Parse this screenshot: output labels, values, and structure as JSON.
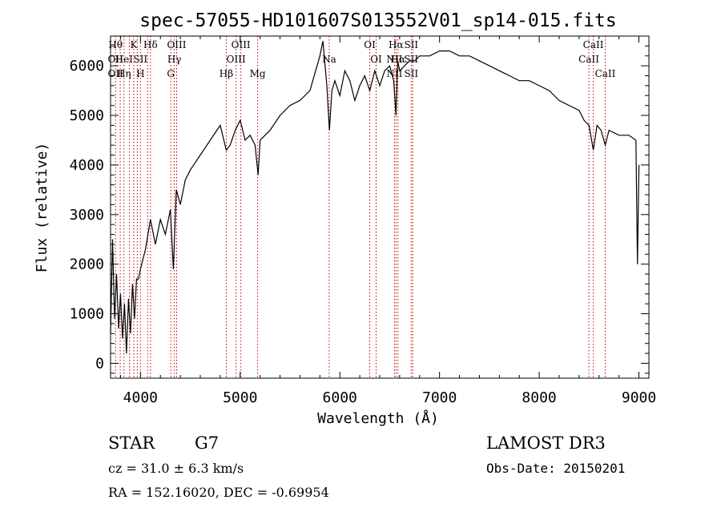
{
  "colors": {
    "line": "#000000",
    "marker": "#cc0000",
    "background": "#ffffff"
  },
  "chart_data": {
    "type": "line",
    "title": "spec-57055-HD101607S013552V01_sp14-015.fits",
    "xlabel": "Wavelength (Å)",
    "ylabel": "Flux (relative)",
    "xlim": [
      3700,
      9100
    ],
    "ylim": [
      -300,
      6600
    ],
    "xticks": [
      4000,
      5000,
      6000,
      7000,
      8000,
      9000
    ],
    "yticks": [
      0,
      1000,
      2000,
      3000,
      4000,
      5000,
      6000
    ],
    "series": [
      {
        "name": "flux",
        "x": [
          3700,
          3720,
          3740,
          3760,
          3780,
          3800,
          3820,
          3840,
          3860,
          3880,
          3900,
          3920,
          3940,
          3960,
          3980,
          4000,
          4050,
          4100,
          4150,
          4200,
          4250,
          4300,
          4330,
          4360,
          4400,
          4450,
          4500,
          4600,
          4700,
          4800,
          4860,
          4900,
          4950,
          5000,
          5050,
          5100,
          5150,
          5180,
          5200,
          5300,
          5400,
          5500,
          5600,
          5700,
          5800,
          5830,
          5870,
          5895,
          5920,
          5950,
          6000,
          6050,
          6100,
          6150,
          6200,
          6250,
          6300,
          6350,
          6400,
          6450,
          6500,
          6540,
          6563,
          6580,
          6600,
          6650,
          6700,
          6750,
          6800,
          6900,
          7000,
          7100,
          7200,
          7300,
          7400,
          7500,
          7600,
          7700,
          7800,
          7900,
          8000,
          8100,
          8200,
          8300,
          8400,
          8450,
          8500,
          8542,
          8580,
          8620,
          8662,
          8700,
          8800,
          8900,
          8970,
          8985,
          9000
        ],
        "y": [
          600,
          2500,
          900,
          1800,
          700,
          1400,
          500,
          1200,
          200,
          1300,
          600,
          1600,
          900,
          1700,
          1700,
          1900,
          2300,
          2900,
          2400,
          2900,
          2600,
          3100,
          1900,
          3500,
          3200,
          3700,
          3900,
          4200,
          4500,
          4800,
          4300,
          4400,
          4700,
          4900,
          4500,
          4600,
          4400,
          3800,
          4500,
          4700,
          5000,
          5200,
          5300,
          5500,
          6200,
          6500,
          5600,
          4700,
          5500,
          5700,
          5400,
          5900,
          5700,
          5300,
          5600,
          5800,
          5500,
          5900,
          5600,
          5900,
          6000,
          5700,
          5000,
          6100,
          5900,
          6000,
          6100,
          6100,
          6200,
          6200,
          6300,
          6300,
          6200,
          6200,
          6100,
          6000,
          5900,
          5800,
          5700,
          5700,
          5600,
          5500,
          5300,
          5200,
          5100,
          4900,
          4800,
          4300,
          4800,
          4700,
          4400,
          4700,
          4600,
          4600,
          4500,
          2000,
          4000
        ]
      }
    ],
    "lines": [
      {
        "x": 3750,
        "labels": [
          "Hθ",
          "OII",
          "OII"
        ]
      },
      {
        "x": 3797,
        "labels": [
          "",
          "",
          ""
        ]
      },
      {
        "x": 3835,
        "labels": [
          "",
          "HeI",
          "Hη"
        ]
      },
      {
        "x": 3889,
        "labels": [
          "",
          "",
          ""
        ]
      },
      {
        "x": 3933,
        "labels": [
          "K",
          "",
          ""
        ]
      },
      {
        "x": 3968,
        "labels": [
          "",
          "",
          ""
        ]
      },
      {
        "x": 4000,
        "labels": [
          "",
          "SII",
          "H"
        ]
      },
      {
        "x": 4072,
        "labels": [
          "",
          "",
          ""
        ]
      },
      {
        "x": 4101,
        "labels": [
          "Hδ",
          "",
          ""
        ]
      },
      {
        "x": 4304,
        "labels": [
          "",
          "",
          "G"
        ]
      },
      {
        "x": 4340,
        "labels": [
          "",
          "Hγ",
          ""
        ]
      },
      {
        "x": 4363,
        "labels": [
          "OIII",
          "",
          ""
        ]
      },
      {
        "x": 4861,
        "labels": [
          "",
          "",
          "Hβ"
        ]
      },
      {
        "x": 4959,
        "labels": [
          "",
          "OIII",
          ""
        ]
      },
      {
        "x": 5007,
        "labels": [
          "OIII",
          "",
          ""
        ]
      },
      {
        "x": 5175,
        "labels": [
          "",
          "",
          "Mg"
        ]
      },
      {
        "x": 5893,
        "labels": [
          "",
          "Na",
          ""
        ]
      },
      {
        "x": 6300,
        "labels": [
          "OI",
          "",
          ""
        ]
      },
      {
        "x": 6364,
        "labels": [
          "",
          "OI",
          ""
        ]
      },
      {
        "x": 6548,
        "labels": [
          "",
          "NII",
          "NII"
        ]
      },
      {
        "x": 6563,
        "labels": [
          "Hα",
          "",
          ""
        ]
      },
      {
        "x": 6583,
        "labels": [
          "",
          "Hα",
          ""
        ]
      },
      {
        "x": 6716,
        "labels": [
          "SII",
          "SII",
          "SII"
        ]
      },
      {
        "x": 6731,
        "labels": [
          "",
          "",
          ""
        ]
      },
      {
        "x": 8498,
        "labels": [
          "",
          "CaII",
          ""
        ]
      },
      {
        "x": 8542,
        "labels": [
          "CaII",
          "",
          ""
        ]
      },
      {
        "x": 8662,
        "labels": [
          "",
          "",
          "CaII"
        ]
      }
    ]
  },
  "info": {
    "class": "STAR",
    "subclass": "G7",
    "survey": "LAMOST DR3",
    "cz": "cz = 31.0 ± 6.3 km/s",
    "obs_date": "Obs-Date: 20150201",
    "radec": "RA = 152.16020, DEC =  -0.69954"
  }
}
